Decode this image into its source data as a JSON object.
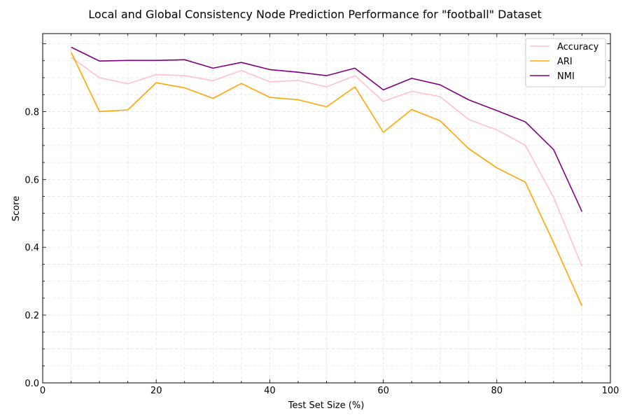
{
  "chart_data": {
    "type": "line",
    "title": "Local and Global Consistency Node Prediction Performance for \"football\" Dataset",
    "xlabel": "Test Set Size (%)",
    "ylabel": "Score",
    "xlim": [
      0,
      100
    ],
    "ylim": [
      0,
      1.03
    ],
    "xticks": [
      "0",
      "20",
      "40",
      "60",
      "80",
      "100"
    ],
    "yticks": [
      "0.0",
      "0.2",
      "0.4",
      "0.6",
      "0.8"
    ],
    "grid": true,
    "legend_position": "top-right",
    "x": [
      5,
      10,
      15,
      20,
      25,
      30,
      35,
      40,
      45,
      50,
      55,
      60,
      65,
      70,
      75,
      80,
      85,
      90,
      95
    ],
    "series": [
      {
        "name": "Accuracy",
        "color": "#ffc0cb",
        "values": [
          0.96,
          0.9,
          0.882,
          0.909,
          0.906,
          0.891,
          0.921,
          0.888,
          0.892,
          0.873,
          0.906,
          0.83,
          0.86,
          0.844,
          0.777,
          0.746,
          0.701,
          0.547,
          0.344
        ]
      },
      {
        "name": "ARI",
        "color": "#ffa500",
        "values": [
          0.975,
          0.8,
          0.805,
          0.885,
          0.87,
          0.839,
          0.883,
          0.842,
          0.835,
          0.814,
          0.873,
          0.739,
          0.806,
          0.773,
          0.691,
          0.634,
          0.592,
          0.413,
          0.227
        ]
      },
      {
        "name": "NMI",
        "color": "#800080",
        "values": [
          0.99,
          0.949,
          0.951,
          0.951,
          0.953,
          0.928,
          0.945,
          0.924,
          0.916,
          0.906,
          0.928,
          0.864,
          0.898,
          0.879,
          0.835,
          0.803,
          0.77,
          0.688,
          0.505
        ]
      }
    ]
  }
}
